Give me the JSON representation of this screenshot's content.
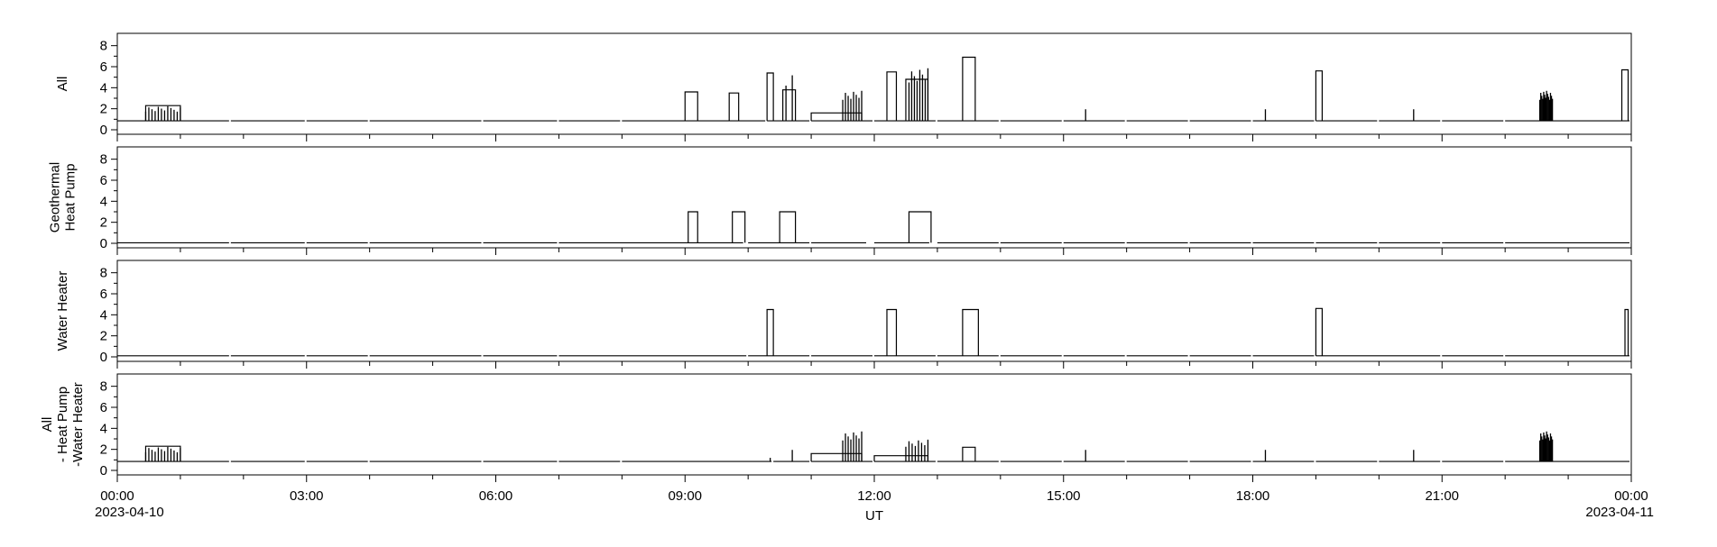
{
  "chart_data": {
    "type": "line",
    "xlabel": "UT",
    "x_ticks": [
      "00:00",
      "03:00",
      "06:00",
      "09:00",
      "12:00",
      "15:00",
      "18:00",
      "21:00",
      "00:00"
    ],
    "x_tick_hours": [
      0,
      3,
      6,
      9,
      12,
      15,
      18,
      21,
      24
    ],
    "x_date_start": "2023-04-10",
    "x_date_end": "2023-04-11",
    "xlim": [
      0,
      24
    ],
    "ylim": [
      0,
      9
    ],
    "y_ticks": [
      0,
      2,
      4,
      6,
      8
    ],
    "panels": [
      {
        "ylabel": [
          "All"
        ],
        "series": [
          {
            "base": 0.85,
            "segments": [
              [
                0,
                1.8
              ],
              [
                1.8,
                3
              ],
              [
                3,
                4
              ],
              [
                4,
                5.8
              ],
              [
                5.8,
                7
              ],
              [
                7,
                8
              ],
              [
                8,
                10.3
              ],
              [
                10.3,
                11
              ],
              [
                11,
                12
              ],
              [
                12,
                13
              ],
              [
                13,
                14
              ],
              [
                14,
                15
              ],
              [
                15,
                16
              ],
              [
                16,
                17
              ],
              [
                17,
                18
              ],
              [
                18,
                19
              ],
              [
                19,
                20
              ],
              [
                20,
                21
              ],
              [
                21,
                22
              ],
              [
                22,
                24
              ]
            ],
            "blocks": [
              [
                0.45,
                1.0,
                2.3
              ],
              [
                9.0,
                9.2,
                3.6
              ],
              [
                9.7,
                9.85,
                3.5
              ],
              [
                10.3,
                10.4,
                5.4
              ],
              [
                10.55,
                10.75,
                3.8
              ],
              [
                11.0,
                11.8,
                1.6
              ],
              [
                12.2,
                12.35,
                5.5
              ],
              [
                12.5,
                12.85,
                4.8
              ],
              [
                13.4,
                13.6,
                6.9
              ],
              [
                19.0,
                19.1,
                5.6
              ],
              [
                23.85,
                23.95,
                5.7
              ]
            ],
            "spikes": [
              [
                0.45,
                1.0,
                2.3,
                12
              ],
              [
                10.6,
                10.7,
                5.6,
                2
              ],
              [
                11.5,
                11.8,
                3.8,
                8
              ],
              [
                12.55,
                12.85,
                6.0,
                8
              ],
              [
                22.55,
                22.75,
                3.8,
                14
              ],
              [
                15.35,
                15.36,
                2.6,
                1
              ],
              [
                18.2,
                18.25,
                2.6,
                1
              ],
              [
                20.55,
                20.56,
                2.6,
                1
              ]
            ]
          }
        ]
      },
      {
        "ylabel": [
          "Geothermal",
          "Heat Pump"
        ],
        "series": [
          {
            "base": 0.05,
            "segments": [
              [
                0,
                1.8
              ],
              [
                1.8,
                3
              ],
              [
                3,
                4
              ],
              [
                4,
                5.8
              ],
              [
                5.8,
                7
              ],
              [
                7,
                9.95
              ],
              [
                10.0,
                11
              ],
              [
                11,
                11.9
              ],
              [
                12,
                12.9
              ],
              [
                13,
                14
              ],
              [
                14,
                15
              ],
              [
                15,
                16
              ],
              [
                16,
                17
              ],
              [
                17,
                18
              ],
              [
                18,
                19
              ],
              [
                19,
                20
              ],
              [
                20,
                21
              ],
              [
                21,
                22
              ],
              [
                22,
                24
              ]
            ],
            "blocks": [
              [
                9.05,
                9.2,
                3.0
              ],
              [
                9.75,
                9.95,
                3.0
              ],
              [
                10.5,
                10.75,
                3.0
              ],
              [
                12.55,
                12.9,
                3.0
              ]
            ],
            "spikes": []
          }
        ]
      },
      {
        "ylabel": [
          "Water Heater"
        ],
        "series": [
          {
            "base": 0.1,
            "segments": [
              [
                0,
                1.8
              ],
              [
                1.8,
                3
              ],
              [
                3,
                4
              ],
              [
                4,
                5.8
              ],
              [
                5.8,
                7
              ],
              [
                7,
                10
              ],
              [
                10,
                11
              ],
              [
                11,
                12
              ],
              [
                12,
                13
              ],
              [
                13,
                14
              ],
              [
                14,
                15
              ],
              [
                15,
                16
              ],
              [
                16,
                17
              ],
              [
                17,
                18
              ],
              [
                18,
                19
              ],
              [
                19,
                21
              ],
              [
                21,
                22
              ],
              [
                22,
                24
              ]
            ],
            "blocks": [
              [
                10.3,
                10.4,
                4.5
              ],
              [
                12.2,
                12.35,
                4.5
              ],
              [
                13.4,
                13.65,
                4.5
              ],
              [
                19.0,
                19.1,
                4.6
              ],
              [
                23.9,
                23.95,
                4.5
              ]
            ],
            "spikes": []
          }
        ]
      },
      {
        "ylabel": [
          "All",
          "- Heat Pump",
          "-Water Heater"
        ],
        "series": [
          {
            "base": 0.85,
            "segments": [
              [
                0,
                1.8
              ],
              [
                1.8,
                3
              ],
              [
                3,
                4
              ],
              [
                4,
                5.8
              ],
              [
                5.8,
                7
              ],
              [
                7,
                8
              ],
              [
                8,
                10.4
              ],
              [
                10.4,
                11
              ],
              [
                11,
                12
              ],
              [
                12,
                13
              ],
              [
                13,
                14
              ],
              [
                14,
                15
              ],
              [
                15,
                16
              ],
              [
                16,
                17
              ],
              [
                17,
                18
              ],
              [
                18,
                19
              ],
              [
                19,
                20
              ],
              [
                20,
                21
              ],
              [
                21,
                22
              ],
              [
                22,
                24
              ]
            ],
            "blocks": [
              [
                0.45,
                1.0,
                2.3
              ],
              [
                11.0,
                11.8,
                1.6
              ],
              [
                12.0,
                12.85,
                1.4
              ],
              [
                13.4,
                13.6,
                2.2
              ]
            ],
            "spikes": [
              [
                0.45,
                1.0,
                2.3,
                12
              ],
              [
                10.35,
                10.36,
                1.6,
                1
              ],
              [
                10.7,
                10.71,
                2.6,
                1
              ],
              [
                11.5,
                11.8,
                3.8,
                8
              ],
              [
                12.5,
                12.85,
                3.0,
                8
              ],
              [
                22.55,
                22.75,
                3.8,
                14
              ],
              [
                15.35,
                15.36,
                2.6,
                1
              ],
              [
                18.2,
                18.25,
                2.6,
                1
              ],
              [
                20.55,
                20.56,
                2.6,
                1
              ]
            ]
          }
        ]
      }
    ]
  }
}
